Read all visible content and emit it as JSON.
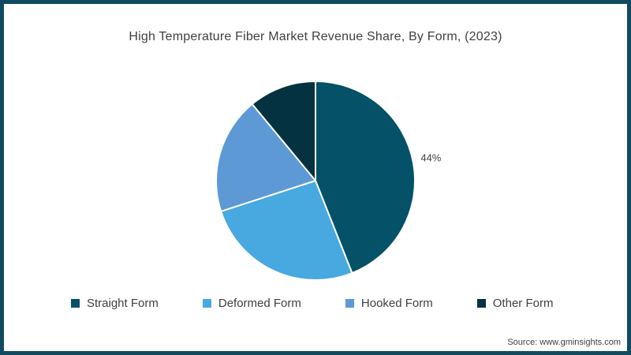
{
  "title": "High Temperature Fiber Market Revenue Share, By Form, (2023)",
  "source_note": "Source: www.gminsights.com",
  "colors": {
    "frame_border": "#104b60",
    "title_text": "#3f3f3f",
    "slice_label_text": "#3f3f3f",
    "source_text": "#404040"
  },
  "chart_data": {
    "type": "pie",
    "title": "High Temperature Fiber Market Revenue Share, By Form, (2023)",
    "start_angle_deg": 0,
    "direction": "clockwise",
    "legend_position": "bottom",
    "slices": [
      {
        "label": "Straight Form",
        "value": 44,
        "color": "#045168",
        "data_label": "44%"
      },
      {
        "label": "Deformed Form",
        "value": 26,
        "color": "#47a9e0",
        "data_label": ""
      },
      {
        "label": "Hooked Form",
        "value": 19,
        "color": "#5d99d5",
        "data_label": ""
      },
      {
        "label": "Other Form",
        "value": 11,
        "color": "#053240",
        "data_label": ""
      }
    ]
  }
}
